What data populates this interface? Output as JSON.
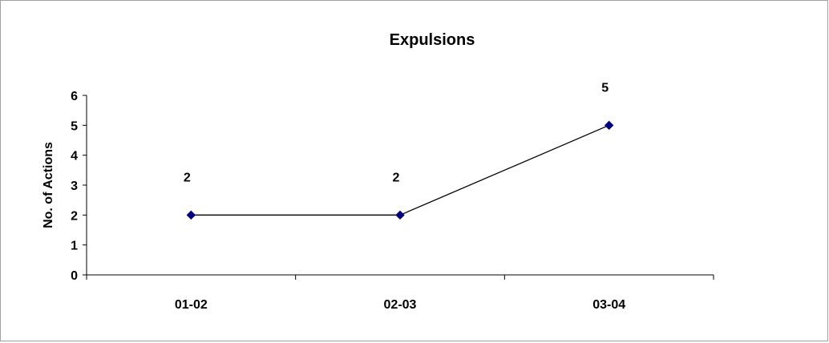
{
  "chart_data": {
    "type": "line",
    "title": "Expulsions",
    "xlabel": "",
    "ylabel": "No. of Actions",
    "categories": [
      "01-02",
      "02-03",
      "03-04"
    ],
    "series": [
      {
        "values": [
          2,
          2,
          5
        ],
        "data_labels": [
          "2",
          "2",
          "5"
        ]
      }
    ],
    "ylim": [
      0,
      6
    ],
    "y_ticks": [
      "0",
      "1",
      "2",
      "3",
      "4",
      "5",
      "6"
    ],
    "grid": false,
    "legend": "none",
    "colors": {
      "line": "#000000",
      "marker": "#000080",
      "axis": "#000000"
    },
    "marker": "diamond"
  }
}
